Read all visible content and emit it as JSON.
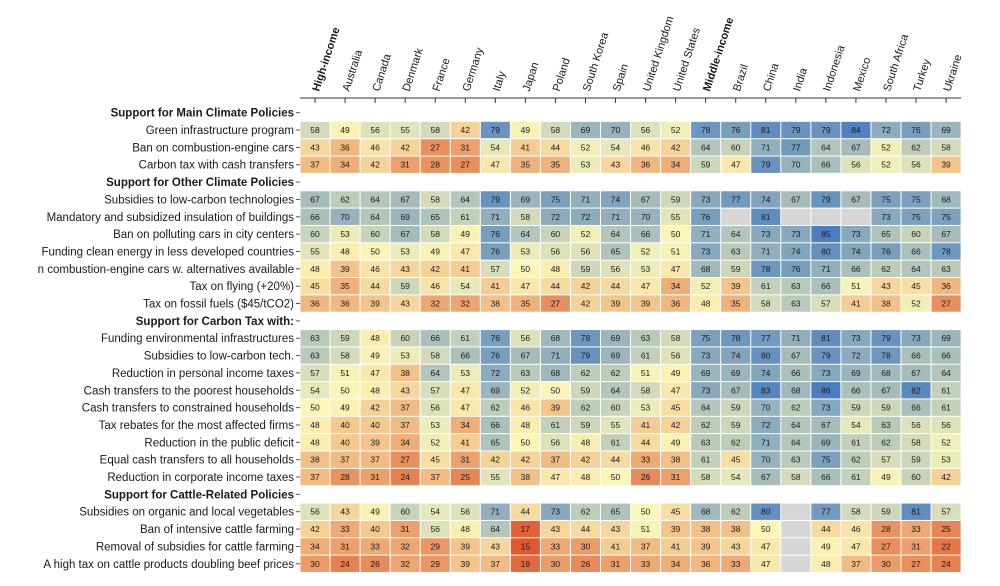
{
  "chart_data": {
    "type": "heatmap",
    "columns": [
      {
        "name": "High-income",
        "bold": true
      },
      {
        "name": "Australia"
      },
      {
        "name": "Canada"
      },
      {
        "name": "Denmark"
      },
      {
        "name": "France"
      },
      {
        "name": "Germany"
      },
      {
        "name": "Italy"
      },
      {
        "name": "Japan"
      },
      {
        "name": "Poland"
      },
      {
        "name": "South Korea"
      },
      {
        "name": "Spain"
      },
      {
        "name": "United Kingdom"
      },
      {
        "name": "United States"
      },
      {
        "name": "Middle-income",
        "bold": true
      },
      {
        "name": "Brazil"
      },
      {
        "name": "China"
      },
      {
        "name": "India"
      },
      {
        "name": "Indonesia"
      },
      {
        "name": "Mexico"
      },
      {
        "name": "South Africa"
      },
      {
        "name": "Turkey"
      },
      {
        "name": "Ukraine"
      }
    ],
    "rows": [
      {
        "section": true,
        "label": "Support for Main Climate Policies"
      },
      {
        "label": "Green infrastructure program",
        "values": [
          58,
          49,
          56,
          55,
          58,
          42,
          79,
          49,
          58,
          69,
          70,
          56,
          52,
          78,
          76,
          81,
          79,
          79,
          84,
          72,
          76,
          69
        ]
      },
      {
        "label": "Ban on combustion-engine cars",
        "values": [
          43,
          36,
          46,
          42,
          27,
          31,
          54,
          41,
          44,
          52,
          54,
          46,
          42,
          64,
          60,
          71,
          77,
          64,
          67,
          52,
          62,
          58
        ]
      },
      {
        "label": "Carbon tax with cash transfers",
        "values": [
          37,
          34,
          42,
          31,
          28,
          27,
          47,
          35,
          35,
          53,
          43,
          36,
          34,
          59,
          47,
          79,
          70,
          66,
          56,
          52,
          56,
          39
        ]
      },
      {
        "section": true,
        "label": "Support for Other Climate Policies"
      },
      {
        "label": "Subsidies to low-carbon technologies",
        "values": [
          67,
          62,
          64,
          67,
          58,
          64,
          79,
          69,
          75,
          71,
          74,
          67,
          59,
          73,
          77,
          74,
          67,
          79,
          67,
          75,
          75,
          68
        ]
      },
      {
        "label": "Mandatory and subsidized insulation of buildings",
        "values": [
          66,
          70,
          64,
          69,
          65,
          61,
          71,
          58,
          72,
          72,
          71,
          70,
          55,
          76,
          null,
          81,
          null,
          null,
          null,
          73,
          75,
          75
        ]
      },
      {
        "label": "Ban on polluting cars in city centers",
        "values": [
          60,
          53,
          60,
          67,
          58,
          49,
          76,
          64,
          60,
          52,
          64,
          66,
          50,
          71,
          64,
          73,
          73,
          85,
          73,
          65,
          60,
          67
        ]
      },
      {
        "label": "Funding clean energy in less developed countries",
        "values": [
          55,
          48,
          50,
          53,
          49,
          47,
          76,
          53,
          56,
          56,
          65,
          52,
          51,
          73,
          63,
          71,
          74,
          80,
          74,
          76,
          66,
          78
        ]
      },
      {
        "label": "n combustion-engine cars w. alternatives available",
        "values": [
          48,
          39,
          46,
          43,
          42,
          41,
          57,
          50,
          48,
          59,
          56,
          53,
          47,
          68,
          59,
          78,
          76,
          71,
          66,
          62,
          64,
          63
        ]
      },
      {
        "label": "Tax on flying (+20%)",
        "values": [
          45,
          35,
          44,
          59,
          46,
          54,
          41,
          47,
          44,
          42,
          44,
          47,
          34,
          52,
          39,
          61,
          63,
          66,
          51,
          43,
          45,
          36
        ]
      },
      {
        "label": "Tax on fossil fuels ($45/tCO2)",
        "values": [
          36,
          36,
          39,
          43,
          32,
          32,
          38,
          35,
          27,
          42,
          39,
          39,
          36,
          48,
          35,
          58,
          63,
          57,
          41,
          38,
          52,
          27
        ]
      },
      {
        "section": true,
        "label": "Support for Carbon Tax with:"
      },
      {
        "label": "Funding environmental infrastructures",
        "values": [
          63,
          59,
          48,
          60,
          66,
          61,
          76,
          56,
          68,
          78,
          69,
          63,
          58,
          75,
          78,
          77,
          71,
          81,
          73,
          79,
          73,
          69
        ]
      },
      {
        "label": "Subsidies to low-carbon tech.",
        "values": [
          63,
          58,
          49,
          53,
          58,
          66,
          76,
          67,
          71,
          79,
          69,
          61,
          56,
          73,
          74,
          80,
          67,
          79,
          72,
          78,
          66,
          66
        ]
      },
      {
        "label": "Reduction in personal income taxes",
        "values": [
          57,
          51,
          47,
          38,
          64,
          53,
          72,
          63,
          68,
          62,
          62,
          51,
          49,
          69,
          69,
          74,
          66,
          73,
          69,
          68,
          67,
          64
        ]
      },
      {
        "label": "Cash transfers to the poorest households",
        "values": [
          54,
          50,
          48,
          43,
          57,
          47,
          69,
          52,
          50,
          59,
          64,
          58,
          47,
          73,
          67,
          83,
          68,
          86,
          66,
          67,
          82,
          61
        ]
      },
      {
        "label": "Cash transfers to constrained households",
        "values": [
          50,
          49,
          42,
          37,
          56,
          47,
          62,
          46,
          39,
          62,
          60,
          53,
          45,
          64,
          59,
          70,
          62,
          73,
          59,
          59,
          66,
          61
        ]
      },
      {
        "label": "Tax rebates for the most affected firms",
        "values": [
          48,
          40,
          40,
          37,
          53,
          34,
          66,
          48,
          61,
          59,
          55,
          41,
          42,
          62,
          59,
          72,
          64,
          67,
          54,
          63,
          56,
          56
        ]
      },
      {
        "label": "Reduction in the public deficit",
        "values": [
          48,
          40,
          39,
          34,
          52,
          41,
          65,
          50,
          56,
          48,
          61,
          44,
          49,
          63,
          62,
          71,
          64,
          69,
          61,
          62,
          58,
          52
        ]
      },
      {
        "label": "Equal cash transfers to all households",
        "values": [
          38,
          37,
          37,
          27,
          45,
          31,
          42,
          42,
          37,
          42,
          44,
          33,
          38,
          61,
          45,
          70,
          63,
          75,
          62,
          57,
          59,
          53
        ]
      },
      {
        "label": "Reduction in corporate income taxes",
        "values": [
          37,
          28,
          31,
          24,
          37,
          25,
          55,
          38,
          47,
          48,
          50,
          26,
          31,
          58,
          54,
          67,
          58,
          66,
          61,
          49,
          60,
          42
        ]
      },
      {
        "section": true,
        "label": "Support for Cattle-Related Policies"
      },
      {
        "label": "Subsidies on organic and local vegetables",
        "values": [
          56,
          43,
          49,
          60,
          54,
          56,
          71,
          44,
          73,
          62,
          65,
          50,
          45,
          68,
          62,
          80,
          null,
          77,
          58,
          59,
          81,
          57
        ]
      },
      {
        "label": "Ban of intensive cattle farming",
        "values": [
          42,
          33,
          40,
          31,
          56,
          48,
          64,
          17,
          43,
          44,
          43,
          51,
          39,
          38,
          38,
          50,
          null,
          44,
          46,
          28,
          33,
          25
        ]
      },
      {
        "label": "Removal of subsidies for cattle farming",
        "values": [
          34,
          31,
          33,
          32,
          29,
          39,
          43,
          15,
          33,
          30,
          41,
          37,
          41,
          39,
          43,
          47,
          null,
          49,
          47,
          27,
          31,
          22
        ]
      },
      {
        "label": "A high tax on cattle products doubling beef prices",
        "values": [
          30,
          24,
          26,
          32,
          29,
          39,
          37,
          19,
          30,
          26,
          31,
          33,
          34,
          36,
          33,
          47,
          null,
          48,
          37,
          30,
          27,
          24
        ]
      }
    ]
  },
  "colors": {
    "low": "#e0582d",
    "mid": "#fbf6b8",
    "high": "#4a7fbf",
    "missing": "#d6d6d6"
  }
}
